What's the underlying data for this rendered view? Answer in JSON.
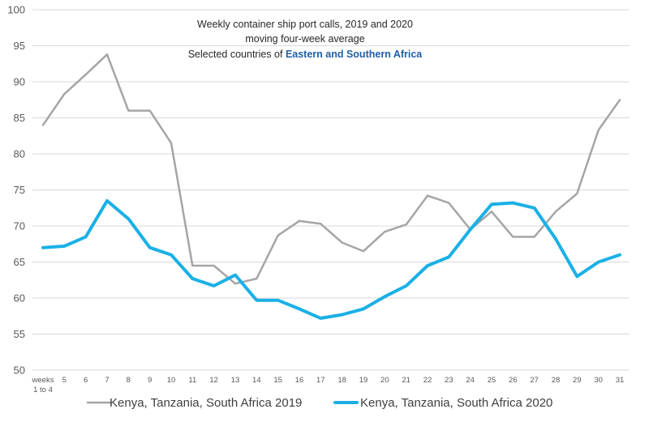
{
  "chart_data": {
    "type": "line",
    "title_lines": [
      "Weekly container ship port calls, 2019 and 2020",
      "moving four-week average"
    ],
    "subtitle_prefix": "Selected countries of ",
    "subtitle_highlight": "Eastern and Southern Africa",
    "highlight_color": "#1f5fa6",
    "xlabel": "",
    "ylabel": "",
    "categories": [
      "weeks 1 to 4",
      "5",
      "6",
      "7",
      "8",
      "9",
      "10",
      "11",
      "12",
      "13",
      "14",
      "15",
      "16",
      "17",
      "18",
      "19",
      "20",
      "21",
      "22",
      "23",
      "24",
      "25",
      "26",
      "27",
      "28",
      "29",
      "30",
      "31"
    ],
    "first_category_lines": [
      "weeks",
      "1 to 4"
    ],
    "ylim": [
      50,
      100
    ],
    "yticks": [
      50,
      55,
      60,
      65,
      70,
      75,
      80,
      85,
      90,
      95,
      100
    ],
    "grid": "horizontal",
    "legend_position": "bottom",
    "series": [
      {
        "name": "Kenya, Tanzania, South Africa 2019",
        "color": "#a5a5a5",
        "values": [
          84,
          88.3,
          91,
          93.8,
          86,
          86,
          81.5,
          64.5,
          64.5,
          62,
          62.7,
          68.7,
          70.7,
          70.3,
          67.7,
          66.5,
          69.2,
          70.2,
          74.2,
          73.2,
          69.5,
          72,
          68.5,
          68.5,
          72,
          74.5,
          83.3,
          87.5
        ]
      },
      {
        "name": "Kenya, Tanzania, South Africa 2020",
        "color": "#1ab0e6",
        "values": [
          67,
          67.2,
          68.5,
          73.5,
          71,
          67,
          66,
          62.7,
          61.7,
          63.2,
          59.7,
          59.7,
          58.5,
          57.2,
          57.7,
          58.5,
          60.2,
          61.7,
          64.5,
          65.7,
          69.5,
          73,
          73.2,
          72.5,
          68.2,
          63,
          65,
          66
        ]
      }
    ]
  }
}
